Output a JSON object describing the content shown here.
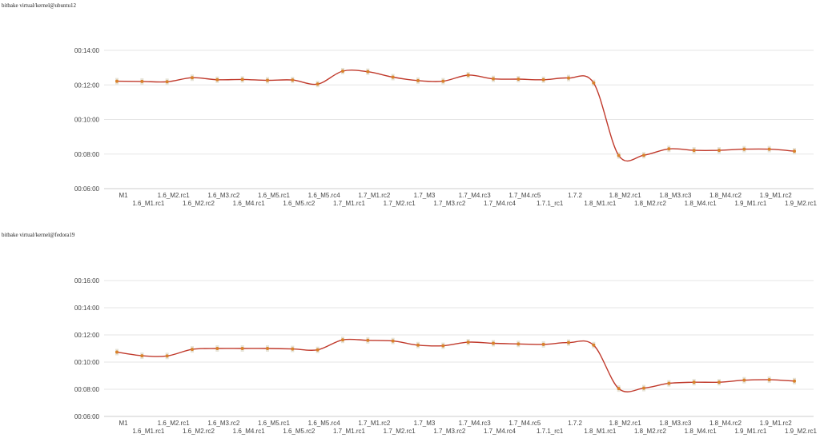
{
  "chart_data": [
    {
      "type": "line",
      "title": "bitbake virtual/kernel@ubuntu12",
      "categories": [
        "M1",
        "1.6_M1.rc1",
        "1.6_M2.rc1",
        "1.6_M2.rc2",
        "1.6_M3.rc2",
        "1.6_M4.rc1",
        "1.6_M5.rc1",
        "1.6_M5.rc2",
        "1.6_M5.rc4",
        "1.7_M1.rc1",
        "1.7_M1.rc2",
        "1.7_M2.rc1",
        "1.7_M3",
        "1.7_M3.rc2",
        "1.7_M4.rc3",
        "1.7_M4.rc4",
        "1.7_M4.rc5",
        "1.7.1_rc1",
        "1.7.2",
        "1.8_M1.rc1",
        "1.8_M2.rc1",
        "1.8_M2.rc2",
        "1.8_M3.rc3",
        "1.8_M4.rc1",
        "1.8_M4.rc2",
        "1.9_M1.rc1",
        "1.9_M1.rc2",
        "1.9_M2.rc1"
      ],
      "yticks": [
        "00:06:00",
        "00:08:00",
        "00:10:00",
        "00:12:00",
        "00:14:00"
      ],
      "ylim": [
        360,
        840
      ],
      "series": [
        {
          "color": "#c0392b",
          "values": [
            733,
            732,
            731,
            745,
            738,
            739,
            736,
            737,
            723,
            768,
            766,
            747,
            735,
            733,
            754,
            741,
            740,
            738,
            744,
            727,
            475,
            476,
            498,
            493,
            493,
            497,
            497,
            490
          ]
        }
      ],
      "grid": true
    },
    {
      "type": "line",
      "title": "bitbake virtual/kernel@fedora19",
      "categories": [
        "M1",
        "1.6_M1.rc1",
        "1.6_M2.rc1",
        "1.6_M2.rc2",
        "1.6_M3.rc2",
        "1.6_M4.rc1",
        "1.6_M5.rc1",
        "1.6_M5.rc2",
        "1.6_M5.rc4",
        "1.7_M1.rc1",
        "1.7_M1.rc2",
        "1.7_M2.rc1",
        "1.7_M3",
        "1.7_M3.rc2",
        "1.7_M4.rc3",
        "1.7_M4.rc4",
        "1.7_M4.rc5",
        "1.7.1_rc1",
        "1.7.2",
        "1.8_M1.rc1",
        "1.8_M2.rc1",
        "1.8_M2.rc2",
        "1.8_M3.rc3",
        "1.8_M4.rc1",
        "1.8_M4.rc2",
        "1.9_M1.rc1",
        "1.9_M1.rc2",
        "1.9_M2.rc1"
      ],
      "yticks": [
        "00:06:00",
        "00:08:00",
        "00:10:00",
        "00:12:00",
        "00:14:00",
        "00:16:00"
      ],
      "ylim": [
        360,
        960
      ],
      "series": [
        {
          "color": "#c0392b",
          "values": [
            644,
            628,
            627,
            656,
            660,
            660,
            660,
            658,
            654,
            698,
            696,
            693,
            675,
            672,
            688,
            683,
            680,
            678,
            686,
            675,
            483,
            485,
            506,
            511,
            511,
            520,
            522,
            516
          ]
        }
      ],
      "grid": true
    }
  ]
}
